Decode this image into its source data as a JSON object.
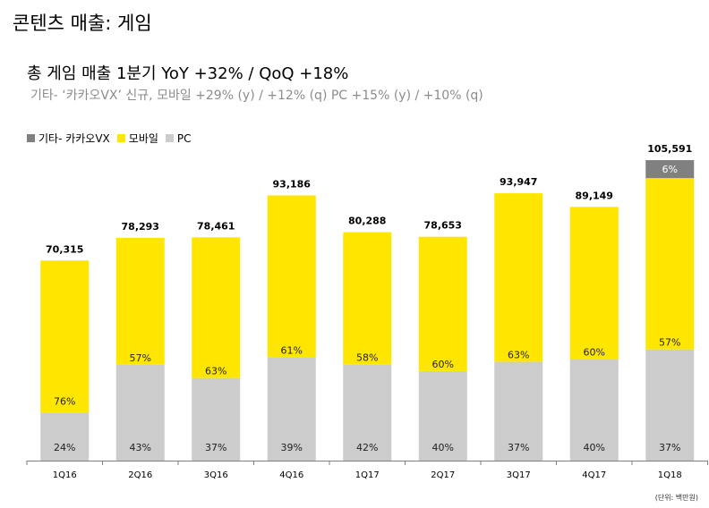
{
  "page": {
    "title": "콘텐츠 매출:  게임",
    "headline": "총 게임 매출 1분기 YoY +32% / QoQ +18%",
    "subline": "기타- ‘카카오VX’ 신규, 모바일 +29% (y) / +12% (q)  PC +15% (y) / +10% (q)",
    "unit_note": "(단위: 백만원)"
  },
  "colors": {
    "other": "#808080",
    "mobile": "#FFE600",
    "pc": "#CCCCCC"
  },
  "chart_data": {
    "type": "bar",
    "stacked": true,
    "categories": [
      "1Q16",
      "2Q16",
      "3Q16",
      "4Q16",
      "1Q17",
      "2Q17",
      "3Q17",
      "4Q17",
      "1Q18"
    ],
    "totals": [
      70315,
      78293,
      78461,
      93186,
      80288,
      78653,
      93947,
      89149,
      105591
    ],
    "total_labels": [
      "70,315",
      "78,293",
      "78,461",
      "93,186",
      "80,288",
      "78,653",
      "93,947",
      "89,149",
      "105,591"
    ],
    "series": [
      {
        "name": "PC",
        "key": "pc",
        "share_labels": [
          "24%",
          "43%",
          "37%",
          "39%",
          "42%",
          "40%",
          "37%",
          "40%",
          "37%"
        ],
        "values": [
          16876,
          33666,
          29031,
          36343,
          33721,
          31461,
          34760,
          35660,
          39069
        ]
      },
      {
        "name": "모바일",
        "key": "mobile",
        "share_labels": [
          "76%",
          "57%",
          "63%",
          "61%",
          "58%",
          "60%",
          "63%",
          "60%",
          "57%"
        ],
        "values": [
          53439,
          44627,
          49430,
          56843,
          46567,
          47192,
          59187,
          53489,
          60187
        ]
      },
      {
        "name": "기타- 카카오VX",
        "key": "other",
        "share_labels": [
          "",
          "",
          "",
          "",
          "",
          "",
          "",
          "",
          "6%"
        ],
        "values": [
          0,
          0,
          0,
          0,
          0,
          0,
          0,
          0,
          6335
        ]
      }
    ],
    "legend": [
      {
        "label": "기타- 카카오VX",
        "key": "other"
      },
      {
        "label": "모바일",
        "key": "mobile"
      },
      {
        "label": "PC",
        "key": "pc"
      }
    ],
    "ylim": [
      0,
      110000
    ],
    "grid": false,
    "legend_position": "top-left"
  }
}
